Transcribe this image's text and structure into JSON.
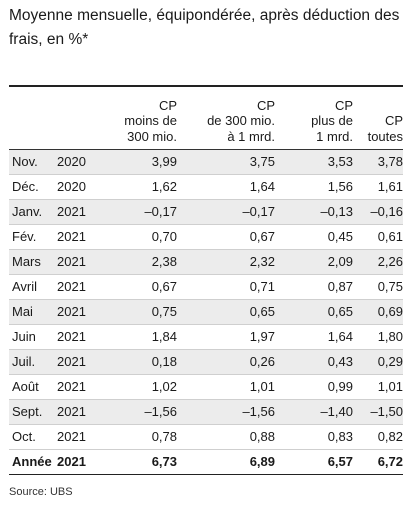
{
  "title": "Moyenne mensuelle, équipondérée, après déduction des frais, en %*",
  "columns": [
    "CP\nmoins de\n300 mio.",
    "CP\nde 300 mio.\nà 1 mrd.",
    "CP\nplus de\n1 mrd.",
    "CP\ntoutes"
  ],
  "rows": [
    {
      "month": "Nov.",
      "year": "2020",
      "values": [
        "3,99",
        "3,75",
        "3,53",
        "3,78"
      ]
    },
    {
      "month": "Déc.",
      "year": "2020",
      "values": [
        "1,62",
        "1,64",
        "1,56",
        "1,61"
      ]
    },
    {
      "month": "Janv.",
      "year": "2021",
      "values": [
        "–0,17",
        "–0,17",
        "–0,13",
        "–0,16"
      ]
    },
    {
      "month": "Fév.",
      "year": "2021",
      "values": [
        "0,70",
        "0,67",
        "0,45",
        "0,61"
      ]
    },
    {
      "month": "Mars",
      "year": "2021",
      "values": [
        "2,38",
        "2,32",
        "2,09",
        "2,26"
      ]
    },
    {
      "month": "Avril",
      "year": "2021",
      "values": [
        "0,67",
        "0,71",
        "0,87",
        "0,75"
      ]
    },
    {
      "month": "Mai",
      "year": "2021",
      "values": [
        "0,75",
        "0,65",
        "0,65",
        "0,69"
      ]
    },
    {
      "month": "Juin",
      "year": "2021",
      "values": [
        "1,84",
        "1,97",
        "1,64",
        "1,80"
      ]
    },
    {
      "month": "Juil.",
      "year": "2021",
      "values": [
        "0,18",
        "0,26",
        "0,43",
        "0,29"
      ]
    },
    {
      "month": "Août",
      "year": "2021",
      "values": [
        "1,02",
        "1,01",
        "0,99",
        "1,01"
      ]
    },
    {
      "month": "Sept.",
      "year": "2021",
      "values": [
        "–1,56",
        "–1,56",
        "–1,40",
        "–1,50"
      ]
    },
    {
      "month": "Oct.",
      "year": "2021",
      "values": [
        "0,78",
        "0,88",
        "0,83",
        "0,82"
      ]
    }
  ],
  "total": {
    "month": "Année",
    "year": "2021",
    "values": [
      "6,73",
      "6,89",
      "6,57",
      "6,72"
    ]
  },
  "source": "Source: UBS",
  "colors": {
    "shade": "#ececec",
    "text": "#1a1a1a"
  }
}
